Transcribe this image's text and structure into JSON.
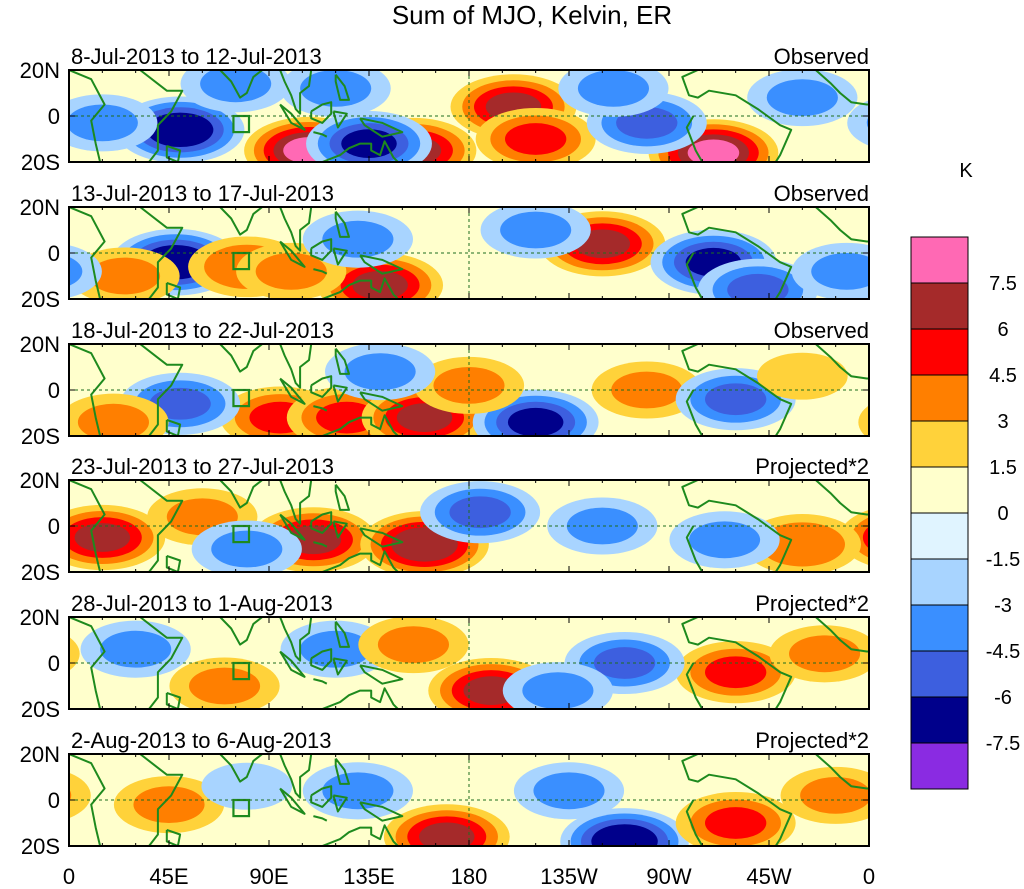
{
  "chart_data": {
    "type": "heatmap",
    "title": "Sum of MJO, Kelvin, ER",
    "colorbar_unit": "K",
    "colorbar_levels": [
      "7.5",
      "6",
      "4.5",
      "3",
      "1.5",
      "0",
      "-1.5",
      "-3",
      "-4.5",
      "-6",
      "-7.5"
    ],
    "colorbar_colors": [
      "#ff69b4",
      "#a52a2a",
      "#ff0000",
      "#ff7f00",
      "#ffd23a",
      "#ffffcc",
      "#e0f4ff",
      "#a8d4ff",
      "#3a8fff",
      "#3d5fdf",
      "#00008b",
      "#8a2be2"
    ],
    "x_ticks": [
      "0",
      "45E",
      "90E",
      "135E",
      "180",
      "135W",
      "90W",
      "45W",
      "0"
    ],
    "y_ticks": [
      "20N",
      "0",
      "20S"
    ],
    "xlim": [
      0,
      360
    ],
    "ylim": [
      -20,
      20
    ],
    "panels": [
      {
        "period": "8-Jul-2013 to 12-Jul-2013",
        "label": "Observed",
        "blobs": [
          {
            "lon": 50,
            "lat": -6,
            "value": -7.0
          },
          {
            "lon": 108,
            "lat": -15,
            "value": 7.5
          },
          {
            "lon": 155,
            "lat": -15,
            "value": 6.0
          },
          {
            "lon": 135,
            "lat": -12,
            "value": -6.0
          },
          {
            "lon": 200,
            "lat": 4,
            "value": 6.0
          },
          {
            "lon": 210,
            "lat": -10,
            "value": 4.5
          },
          {
            "lon": 290,
            "lat": -16,
            "value": 7.5
          },
          {
            "lon": 260,
            "lat": -3,
            "value": -4.5
          },
          {
            "lon": 15,
            "lat": -3,
            "value": -3.0
          },
          {
            "lon": 75,
            "lat": 14,
            "value": -3.0
          },
          {
            "lon": 120,
            "lat": 12,
            "value": -3.0
          },
          {
            "lon": 245,
            "lat": 12,
            "value": -3.0
          },
          {
            "lon": 330,
            "lat": 8,
            "value": -3.0
          }
        ]
      },
      {
        "period": "13-Jul-2013 to 17-Jul-2013",
        "label": "Observed",
        "blobs": [
          {
            "lon": 48,
            "lat": -4,
            "value": -7.0
          },
          {
            "lon": 80,
            "lat": -6,
            "value": 4.0
          },
          {
            "lon": 140,
            "lat": -14,
            "value": 6.0
          },
          {
            "lon": 100,
            "lat": -8,
            "value": 3.0
          },
          {
            "lon": 240,
            "lat": 4,
            "value": 6.0
          },
          {
            "lon": 290,
            "lat": -4,
            "value": -6.0
          },
          {
            "lon": 310,
            "lat": -16,
            "value": -4.5
          },
          {
            "lon": 210,
            "lat": 10,
            "value": -3.0
          },
          {
            "lon": 130,
            "lat": 6,
            "value": -3.0
          },
          {
            "lon": 25,
            "lat": -10,
            "value": 3.0
          },
          {
            "lon": 350,
            "lat": -8,
            "value": -3.0
          }
        ]
      },
      {
        "period": "18-Jul-2013 to 22-Jul-2013",
        "label": "Observed",
        "blobs": [
          {
            "lon": 95,
            "lat": -12,
            "value": 4.5
          },
          {
            "lon": 125,
            "lat": -12,
            "value": 4.5
          },
          {
            "lon": 160,
            "lat": -12,
            "value": 6.0
          },
          {
            "lon": 210,
            "lat": -14,
            "value": -6.0
          },
          {
            "lon": 50,
            "lat": -6,
            "value": -4.5
          },
          {
            "lon": 180,
            "lat": 2,
            "value": 3.0
          },
          {
            "lon": 260,
            "lat": 0,
            "value": 3.0
          },
          {
            "lon": 300,
            "lat": -4,
            "value": -4.5
          },
          {
            "lon": 330,
            "lat": 6,
            "value": 1.5
          },
          {
            "lon": 20,
            "lat": -14,
            "value": 3.0
          },
          {
            "lon": 140,
            "lat": 8,
            "value": -3.0
          }
        ]
      },
      {
        "period": "23-Jul-2013 to 27-Jul-2013",
        "label": "Projected*2",
        "blobs": [
          {
            "lon": 15,
            "lat": -5,
            "value": 6.0
          },
          {
            "lon": 110,
            "lat": -6,
            "value": 6.0
          },
          {
            "lon": 160,
            "lat": -8,
            "value": 7.0
          },
          {
            "lon": 185,
            "lat": 6,
            "value": -4.5
          },
          {
            "lon": 240,
            "lat": 0,
            "value": -3.0
          },
          {
            "lon": 330,
            "lat": -8,
            "value": 4.0
          },
          {
            "lon": 60,
            "lat": 4,
            "value": 3.0
          },
          {
            "lon": 295,
            "lat": -6,
            "value": -3.0
          },
          {
            "lon": 80,
            "lat": -10,
            "value": -3.0
          }
        ]
      },
      {
        "period": "28-Jul-2013 to 1-Aug-2013",
        "label": "Projected*2",
        "blobs": [
          {
            "lon": 190,
            "lat": -12,
            "value": 6.0
          },
          {
            "lon": 300,
            "lat": -4,
            "value": 4.5
          },
          {
            "lon": 250,
            "lat": 0,
            "value": -4.5
          },
          {
            "lon": 120,
            "lat": 6,
            "value": -3.0
          },
          {
            "lon": 155,
            "lat": 8,
            "value": 3.0
          },
          {
            "lon": 70,
            "lat": -10,
            "value": 3.0
          },
          {
            "lon": 30,
            "lat": 6,
            "value": -3.0
          },
          {
            "lon": 220,
            "lat": -12,
            "value": -3.0
          },
          {
            "lon": 340,
            "lat": 4,
            "value": 3.0
          }
        ]
      },
      {
        "period": "2-Aug-2013 to 6-Aug-2013",
        "label": "Projected*2",
        "blobs": [
          {
            "lon": 170,
            "lat": -16,
            "value": 6.0
          },
          {
            "lon": 250,
            "lat": -18,
            "value": -7.0
          },
          {
            "lon": 300,
            "lat": -10,
            "value": 4.5
          },
          {
            "lon": 45,
            "lat": -2,
            "value": 3.0
          },
          {
            "lon": 225,
            "lat": 4,
            "value": -3.0
          },
          {
            "lon": 130,
            "lat": 4,
            "value": -3.0
          },
          {
            "lon": 345,
            "lat": 2,
            "value": 3.0
          },
          {
            "lon": 80,
            "lat": 6,
            "value": -1.5
          }
        ]
      }
    ]
  }
}
